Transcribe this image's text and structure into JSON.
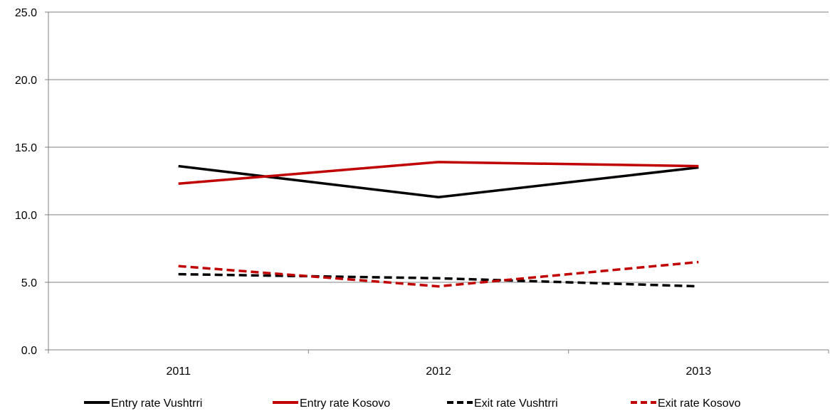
{
  "chart_data": {
    "type": "line",
    "categories": [
      "2011",
      "2012",
      "2013"
    ],
    "ylim": [
      0,
      25
    ],
    "yticks": [
      "0.0",
      "5.0",
      "10.0",
      "15.0",
      "20.0",
      "25.0"
    ],
    "ytick_values": [
      0,
      5,
      10,
      15,
      20,
      25
    ],
    "grid": true,
    "legend_position": "bottom",
    "series": [
      {
        "name": "Entry rate Vushtrri",
        "values": [
          13.6,
          11.3,
          13.5
        ],
        "color": "#000000",
        "dash": "solid"
      },
      {
        "name": "Entry rate Kosovo",
        "values": [
          12.3,
          13.9,
          13.6
        ],
        "color": "#c00000",
        "dash": "dashed-none"
      },
      {
        "name": "Exit rate Vushtrri",
        "values": [
          5.6,
          5.3,
          4.7
        ],
        "color": "#000000",
        "dash": "dashed"
      },
      {
        "name": "Exit rate Kosovo",
        "values": [
          6.2,
          4.7,
          6.5
        ],
        "color": "#c00000",
        "dash": "dashed"
      }
    ]
  }
}
